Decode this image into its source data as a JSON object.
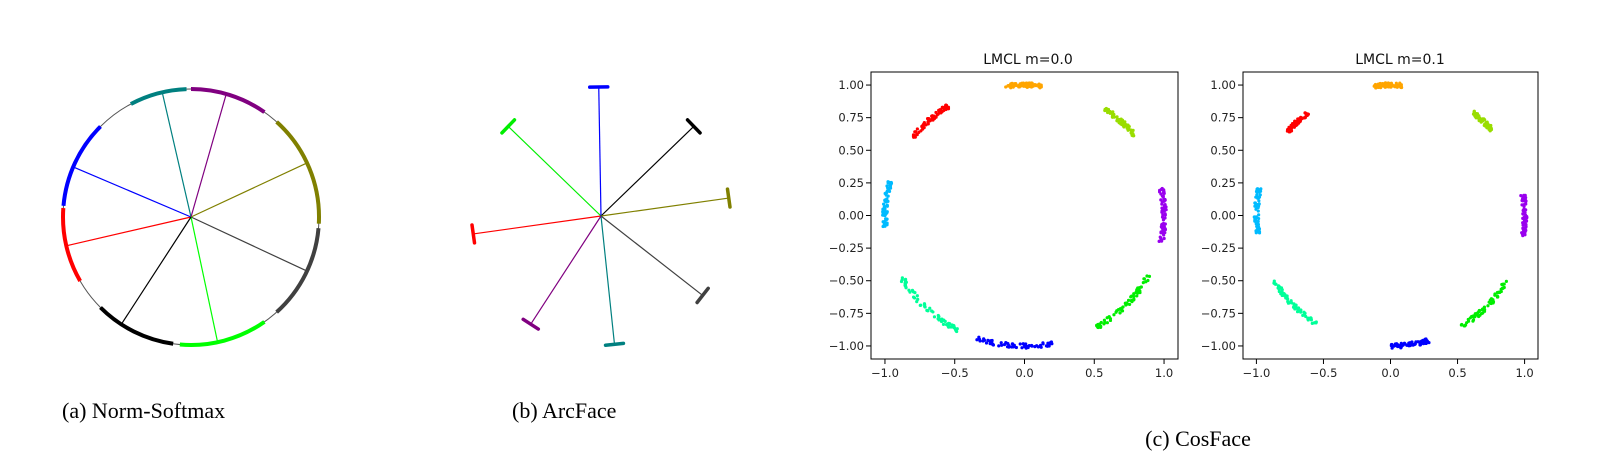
{
  "captions": {
    "a": "(a) Norm-Softmax",
    "b": "(b) ArcFace",
    "c": "(c) CosFace"
  },
  "colors": {
    "norm_softmax": [
      "#ff0000",
      "#0000ff",
      "#008080",
      "#800080",
      "#808000",
      "#404040",
      "#00ff00",
      "#000000"
    ],
    "arcface": [
      "#ff0000",
      "#00ee00",
      "#0000ff",
      "#000000",
      "#808000",
      "#404040",
      "#008080",
      "#800080"
    ],
    "cosface": [
      "#ff0000",
      "#ffa500",
      "#99dd00",
      "#9900ee",
      "#00ee00",
      "#0000ff",
      "#00ff99",
      "#00bbff"
    ]
  },
  "chart_data": [
    {
      "type": "scatter",
      "title": "LMCL m=0.0",
      "xlabel": "",
      "ylabel": "",
      "xlim": [
        -1.1,
        1.1
      ],
      "ylim": [
        -1.1,
        1.1
      ],
      "xticks": [
        "-1.0",
        "-0.5",
        "0.0",
        "0.5",
        "1.0"
      ],
      "yticks": [
        "1.00",
        "0.75",
        "0.50",
        "0.25",
        "0.00",
        "-0.25",
        "-0.50",
        "-0.75",
        "-1.00"
      ],
      "series": [
        {
          "angle_range_deg": [
            123,
            143
          ],
          "values": []
        },
        {
          "angle_range_deg": [
            83,
            98
          ],
          "values": []
        },
        {
          "angle_range_deg": [
            38,
            55
          ],
          "values": []
        },
        {
          "angle_range_deg": [
            -12,
            12
          ],
          "values": []
        },
        {
          "angle_range_deg": [
            -60,
            -27
          ],
          "values": []
        },
        {
          "angle_range_deg": [
            -110,
            -78
          ],
          "values": []
        },
        {
          "angle_range_deg": [
            -152,
            -118
          ],
          "values": []
        },
        {
          "angle_range_deg": [
            -195,
            -175
          ],
          "values": []
        }
      ]
    },
    {
      "type": "scatter",
      "title": "LMCL m=0.1",
      "xlabel": "",
      "ylabel": "",
      "xlim": [
        -1.1,
        1.1
      ],
      "ylim": [
        -1.1,
        1.1
      ],
      "xticks": [
        "-1.0",
        "-0.5",
        "0.0",
        "0.5",
        "1.0"
      ],
      "yticks": [
        "1.00",
        "0.75",
        "0.50",
        "0.25",
        "0.00",
        "-0.25",
        "-0.50",
        "-0.75",
        "-1.00"
      ],
      "series": [
        {
          "angle_range_deg": [
            128,
            140
          ],
          "values": []
        },
        {
          "angle_range_deg": [
            85,
            97
          ],
          "values": []
        },
        {
          "angle_range_deg": [
            41,
            52
          ],
          "values": []
        },
        {
          "angle_range_deg": [
            -9,
            9
          ],
          "values": []
        },
        {
          "angle_range_deg": [
            -58,
            -30
          ],
          "values": []
        },
        {
          "angle_range_deg": [
            -90,
            -73
          ],
          "values": []
        },
        {
          "angle_range_deg": [
            -150,
            -124
          ],
          "values": []
        },
        {
          "angle_range_deg": [
            -192,
            -172
          ],
          "values": []
        }
      ]
    }
  ],
  "norm_softmax_diagram": {
    "spokes_deg": [
      193,
      157,
      103,
      74,
      25,
      -25,
      -78,
      -123
    ],
    "arcs_deg": [
      [
        176,
        210
      ],
      [
        135,
        175
      ],
      [
        92,
        118
      ],
      [
        55,
        90
      ],
      [
        -3,
        48
      ],
      [
        -48,
        -5
      ],
      [
        -95,
        -55
      ],
      [
        -135,
        -98
      ]
    ]
  },
  "arcface_diagram": {
    "spokes_deg": [
      188,
      136,
      91,
      44,
      8,
      -38,
      -84,
      -123
    ],
    "lengths": [
      1.0,
      1.0,
      1.0,
      1.0,
      1.0,
      1.0,
      1.0,
      1.0
    ]
  }
}
